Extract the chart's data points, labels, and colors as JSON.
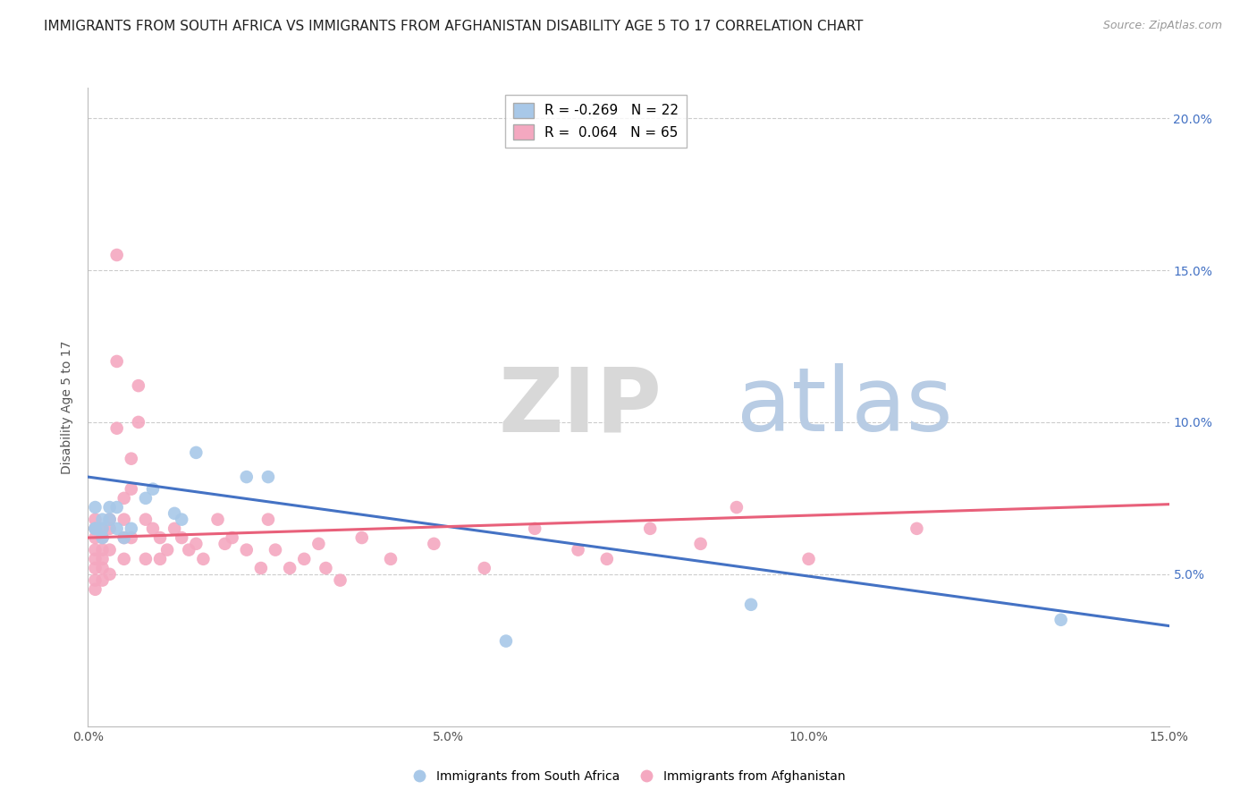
{
  "title": "IMMIGRANTS FROM SOUTH AFRICA VS IMMIGRANTS FROM AFGHANISTAN DISABILITY AGE 5 TO 17 CORRELATION CHART",
  "source": "Source: ZipAtlas.com",
  "ylabel": "Disability Age 5 to 17",
  "xlim": [
    0.0,
    0.15
  ],
  "ylim": [
    0.0,
    0.21
  ],
  "xticks": [
    0.0,
    0.05,
    0.1,
    0.15
  ],
  "xtick_labels": [
    "0.0%",
    "5.0%",
    "10.0%",
    "15.0%"
  ],
  "yticks": [
    0.05,
    0.1,
    0.15,
    0.2
  ],
  "ytick_labels_right": [
    "5.0%",
    "10.0%",
    "15.0%",
    "20.0%"
  ],
  "blue_R": -0.269,
  "blue_N": 22,
  "pink_R": 0.064,
  "pink_N": 65,
  "blue_color": "#a8c8e8",
  "pink_color": "#f4a8c0",
  "blue_line_color": "#4472C4",
  "pink_line_color": "#E8607A",
  "watermark_zip": "ZIP",
  "watermark_atlas": "atlas",
  "blue_points_x": [
    0.001,
    0.001,
    0.001,
    0.002,
    0.002,
    0.002,
    0.003,
    0.003,
    0.004,
    0.004,
    0.005,
    0.006,
    0.008,
    0.009,
    0.012,
    0.013,
    0.015,
    0.022,
    0.025,
    0.058,
    0.092,
    0.135
  ],
  "blue_points_y": [
    0.065,
    0.072,
    0.065,
    0.068,
    0.062,
    0.065,
    0.072,
    0.068,
    0.065,
    0.072,
    0.062,
    0.065,
    0.075,
    0.078,
    0.07,
    0.068,
    0.09,
    0.082,
    0.082,
    0.028,
    0.04,
    0.035
  ],
  "pink_points_x": [
    0.001,
    0.001,
    0.001,
    0.001,
    0.001,
    0.001,
    0.001,
    0.001,
    0.002,
    0.002,
    0.002,
    0.002,
    0.002,
    0.002,
    0.003,
    0.003,
    0.003,
    0.003,
    0.004,
    0.004,
    0.004,
    0.005,
    0.005,
    0.005,
    0.005,
    0.006,
    0.006,
    0.006,
    0.007,
    0.007,
    0.008,
    0.008,
    0.009,
    0.01,
    0.01,
    0.011,
    0.012,
    0.013,
    0.014,
    0.015,
    0.016,
    0.018,
    0.019,
    0.02,
    0.022,
    0.024,
    0.025,
    0.026,
    0.028,
    0.03,
    0.032,
    0.033,
    0.035,
    0.038,
    0.042,
    0.048,
    0.055,
    0.062,
    0.068,
    0.072,
    0.078,
    0.085,
    0.09,
    0.1,
    0.115
  ],
  "pink_points_y": [
    0.062,
    0.065,
    0.068,
    0.058,
    0.055,
    0.052,
    0.048,
    0.045,
    0.065,
    0.062,
    0.058,
    0.055,
    0.052,
    0.048,
    0.068,
    0.065,
    0.058,
    0.05,
    0.155,
    0.12,
    0.098,
    0.075,
    0.068,
    0.062,
    0.055,
    0.088,
    0.078,
    0.062,
    0.112,
    0.1,
    0.068,
    0.055,
    0.065,
    0.062,
    0.055,
    0.058,
    0.065,
    0.062,
    0.058,
    0.06,
    0.055,
    0.068,
    0.06,
    0.062,
    0.058,
    0.052,
    0.068,
    0.058,
    0.052,
    0.055,
    0.06,
    0.052,
    0.048,
    0.062,
    0.055,
    0.06,
    0.052,
    0.065,
    0.058,
    0.055,
    0.065,
    0.06,
    0.072,
    0.055,
    0.065
  ],
  "blue_trend_y_start": 0.082,
  "blue_trend_y_end": 0.033,
  "pink_trend_y_start": 0.062,
  "pink_trend_y_end": 0.073,
  "bg_color": "#ffffff",
  "grid_color": "#cccccc",
  "title_fontsize": 11,
  "axis_label_fontsize": 10,
  "tick_fontsize": 10,
  "point_size": 110
}
